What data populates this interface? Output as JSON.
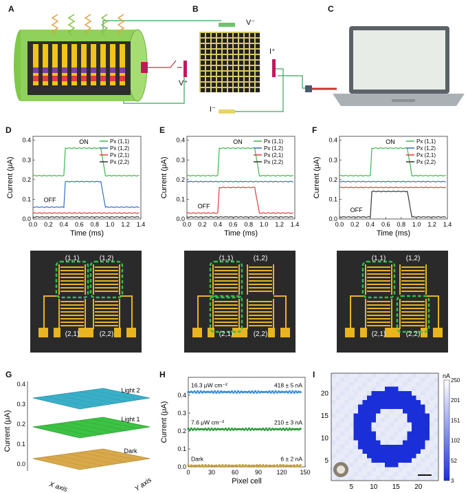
{
  "panels": {
    "A": "A",
    "B": "B",
    "C": "C",
    "D": "D",
    "E": "E",
    "F": "F",
    "G": "G",
    "H": "H",
    "I": "I"
  },
  "schematic": {
    "vminus": "V⁻",
    "vplus": "V⁺",
    "iplus": "I⁺",
    "iminus": "I⁻"
  },
  "traces": {
    "ylabel": "Current (μA)",
    "xlabel": "Time (ms)",
    "on": "ON",
    "off": "OFF",
    "xticks": [
      "0.0",
      "0.2",
      "0.4",
      "0.6",
      "0.8",
      "1.0",
      "1.2",
      "1.4"
    ],
    "yticks": [
      "0.0",
      "0.1",
      "0.2",
      "0.3",
      "0.4"
    ],
    "legend": [
      "Px (1,1)",
      "Px (1,2)",
      "Px (2,1)",
      "Px (2,2)"
    ],
    "colors": [
      "#3bb54a",
      "#2f6fc7",
      "#e23b3b",
      "#333333"
    ]
  },
  "chart_data": [
    {
      "type": "line",
      "panel": "D",
      "x_range": [
        0,
        1.4
      ],
      "ylim": [
        0,
        0.42
      ],
      "on_window": [
        0.42,
        0.88
      ],
      "series": [
        {
          "name": "Px (1,1)",
          "off": 0.22,
          "on": 0.36
        },
        {
          "name": "Px (1,2)",
          "off": 0.06,
          "on": 0.19
        },
        {
          "name": "Px (2,1)",
          "off": 0.03,
          "on": 0.03
        },
        {
          "name": "Px (2,2)",
          "off": 0.01,
          "on": 0.01
        }
      ]
    },
    {
      "type": "line",
      "panel": "E",
      "x_range": [
        0,
        1.4
      ],
      "ylim": [
        0,
        0.42
      ],
      "on_window": [
        0.42,
        0.88
      ],
      "series": [
        {
          "name": "Px (1,1)",
          "off": 0.22,
          "on": 0.36
        },
        {
          "name": "Px (1,2)",
          "off": 0.19,
          "on": 0.19
        },
        {
          "name": "Px (2,1)",
          "off": 0.03,
          "on": 0.16
        },
        {
          "name": "Px (2,2)",
          "off": 0.01,
          "on": 0.01
        }
      ]
    },
    {
      "type": "line",
      "panel": "F",
      "x_range": [
        0,
        1.4
      ],
      "ylim": [
        0,
        0.42
      ],
      "on_window": [
        0.42,
        0.88
      ],
      "series": [
        {
          "name": "Px (1,1)",
          "off": 0.22,
          "on": 0.36
        },
        {
          "name": "Px (1,2)",
          "off": 0.19,
          "on": 0.19
        },
        {
          "name": "Px (2,1)",
          "off": 0.16,
          "on": 0.16
        },
        {
          "name": "Px (2,2)",
          "off": 0.01,
          "on": 0.14
        }
      ]
    },
    {
      "type": "scatter",
      "panel": "H",
      "xlabel": "Pixel cell",
      "ylabel": "Current (μA)",
      "xlim": [
        0,
        150
      ],
      "ylim": [
        0,
        0.5
      ],
      "xticks": [
        "0",
        "30",
        "60",
        "90",
        "120",
        "150"
      ],
      "yticks": [
        "0.0",
        "0.1",
        "0.2",
        "0.3",
        "0.4"
      ],
      "series": [
        {
          "name": "Light 2",
          "label": "16.3 μW cm⁻²",
          "stat": "418 ± 5 nA",
          "value": 0.418,
          "color": "#3a8fd8"
        },
        {
          "name": "Light 1",
          "label": "7.6 μW cm⁻²",
          "stat": "210 ± 3 nA",
          "value": 0.21,
          "color": "#2e9a3a"
        },
        {
          "name": "Dark",
          "label": "Dark",
          "stat": "6 ± 2 nA",
          "value": 0.006,
          "color": "#c8a23a"
        }
      ]
    },
    {
      "type": "surface",
      "panel": "G",
      "zlabel": "Current (μA)",
      "xlabel": "X axis",
      "ylabel": "Y axis",
      "zticks": [
        "0.0",
        "0.1",
        "0.2",
        "0.3",
        "0.4"
      ],
      "layers": [
        {
          "name": "Light 2",
          "value": 0.42
        },
        {
          "name": "Light 1",
          "value": 0.21
        },
        {
          "name": "Dark",
          "value": 0.006
        }
      ]
    },
    {
      "type": "heatmap",
      "panel": "I",
      "xticks": [
        "5",
        "10",
        "15",
        "20"
      ],
      "yticks": [
        "5",
        "10",
        "15",
        "20"
      ],
      "colorbar_unit": "nA",
      "colorbar_ticks": [
        "250",
        "201",
        "151",
        "102",
        "52",
        "3"
      ],
      "pattern": "ring"
    }
  ],
  "pixels": {
    "p11": "(1,1)",
    "p12": "(1,2)",
    "p21": "(2,1)",
    "p22": "(2,2)"
  }
}
